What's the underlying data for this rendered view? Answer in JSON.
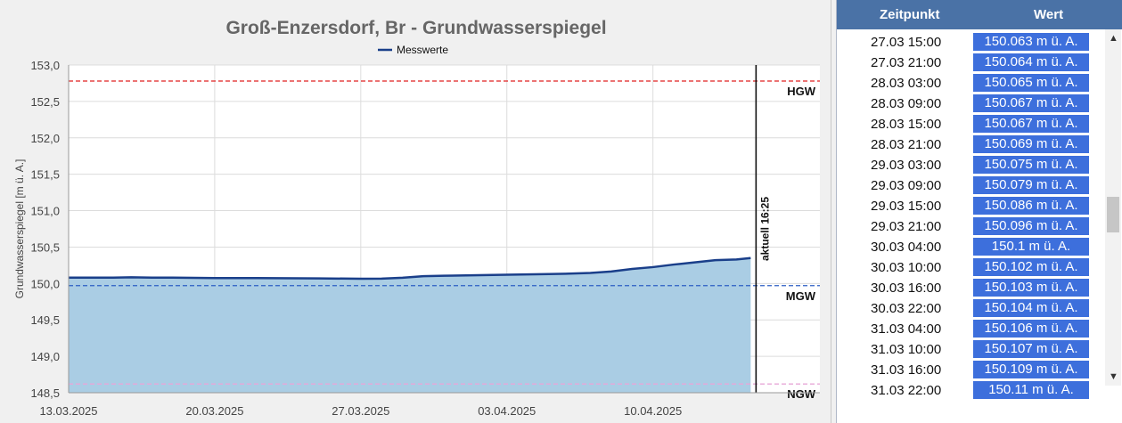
{
  "chart_data": {
    "type": "area",
    "title": "Groß-Enzersdorf, Br - Grundwasserspiegel",
    "ylabel": "Grundwasserspiegel [m ü. A.]",
    "legend": {
      "label": "Messwerte",
      "position": "top-center"
    },
    "ylim": [
      148.5,
      153.0
    ],
    "yticks": [
      "153,0",
      "152,5",
      "152,0",
      "151,5",
      "151,0",
      "150,5",
      "150,0",
      "149,5",
      "149,0",
      "148,5"
    ],
    "xlim": [
      "2025-03-13",
      "2025-04-18"
    ],
    "xticks": [
      "13.03.2025",
      "20.03.2025",
      "27.03.2025",
      "03.04.2025",
      "10.04.2025"
    ],
    "grid": true,
    "series": [
      {
        "name": "Messwerte",
        "color": "#1a3f8a",
        "fill": "#aacde4",
        "x": [
          "2025-03-13",
          "2025-03-14",
          "2025-03-15",
          "2025-03-16",
          "2025-03-17",
          "2025-03-18",
          "2025-03-20",
          "2025-03-22",
          "2025-03-25",
          "2025-03-27",
          "2025-03-28",
          "2025-03-29",
          "2025-03-30",
          "2025-03-31",
          "2025-04-02",
          "2025-04-04",
          "2025-04-05",
          "2025-04-06",
          "2025-04-07",
          "2025-04-08",
          "2025-04-09",
          "2025-04-10",
          "2025-04-11",
          "2025-04-12",
          "2025-04-13",
          "2025-04-14",
          "2025-04-14T16:25"
        ],
        "values": [
          150.08,
          150.08,
          150.08,
          150.085,
          150.08,
          150.08,
          150.075,
          150.075,
          150.07,
          150.065,
          150.067,
          150.079,
          150.1,
          150.106,
          150.115,
          150.125,
          150.13,
          150.135,
          150.145,
          150.165,
          150.2,
          150.225,
          150.26,
          150.29,
          150.32,
          150.33,
          150.35
        ]
      }
    ],
    "reference_lines": [
      {
        "label": "HGW",
        "value": 152.78,
        "color": "#e02020"
      },
      {
        "label": "MGW",
        "value": 149.97,
        "color": "#2d5fc4"
      },
      {
        "label": "NGW",
        "value": 148.62,
        "color": "#e8a8d8"
      }
    ],
    "current_marker": {
      "label": "aktuell 16:25",
      "x": "2025-04-14T16:25"
    }
  },
  "table": {
    "headers": {
      "time": "Zeitpunkt",
      "value": "Wert"
    },
    "rows": [
      {
        "time": "27.03 15:00",
        "value": "150.063 m ü. A."
      },
      {
        "time": "27.03 21:00",
        "value": "150.064 m ü. A."
      },
      {
        "time": "28.03 03:00",
        "value": "150.065 m ü. A."
      },
      {
        "time": "28.03 09:00",
        "value": "150.067 m ü. A."
      },
      {
        "time": "28.03 15:00",
        "value": "150.067 m ü. A."
      },
      {
        "time": "28.03 21:00",
        "value": "150.069 m ü. A."
      },
      {
        "time": "29.03 03:00",
        "value": "150.075 m ü. A."
      },
      {
        "time": "29.03 09:00",
        "value": "150.079 m ü. A."
      },
      {
        "time": "29.03 15:00",
        "value": "150.086 m ü. A."
      },
      {
        "time": "29.03 21:00",
        "value": "150.096 m ü. A."
      },
      {
        "time": "30.03 04:00",
        "value": "150.1 m ü. A."
      },
      {
        "time": "30.03 10:00",
        "value": "150.102 m ü. A."
      },
      {
        "time": "30.03 16:00",
        "value": "150.103 m ü. A."
      },
      {
        "time": "30.03 22:00",
        "value": "150.104 m ü. A."
      },
      {
        "time": "31.03 04:00",
        "value": "150.106 m ü. A."
      },
      {
        "time": "31.03 10:00",
        "value": "150.107 m ü. A."
      },
      {
        "time": "31.03 16:00",
        "value": "150.109 m ü. A."
      },
      {
        "time": "31.03 22:00",
        "value": "150.11 m ü. A."
      }
    ]
  },
  "scrollbar": {
    "up_icon": "▲",
    "down_icon": "▼"
  }
}
